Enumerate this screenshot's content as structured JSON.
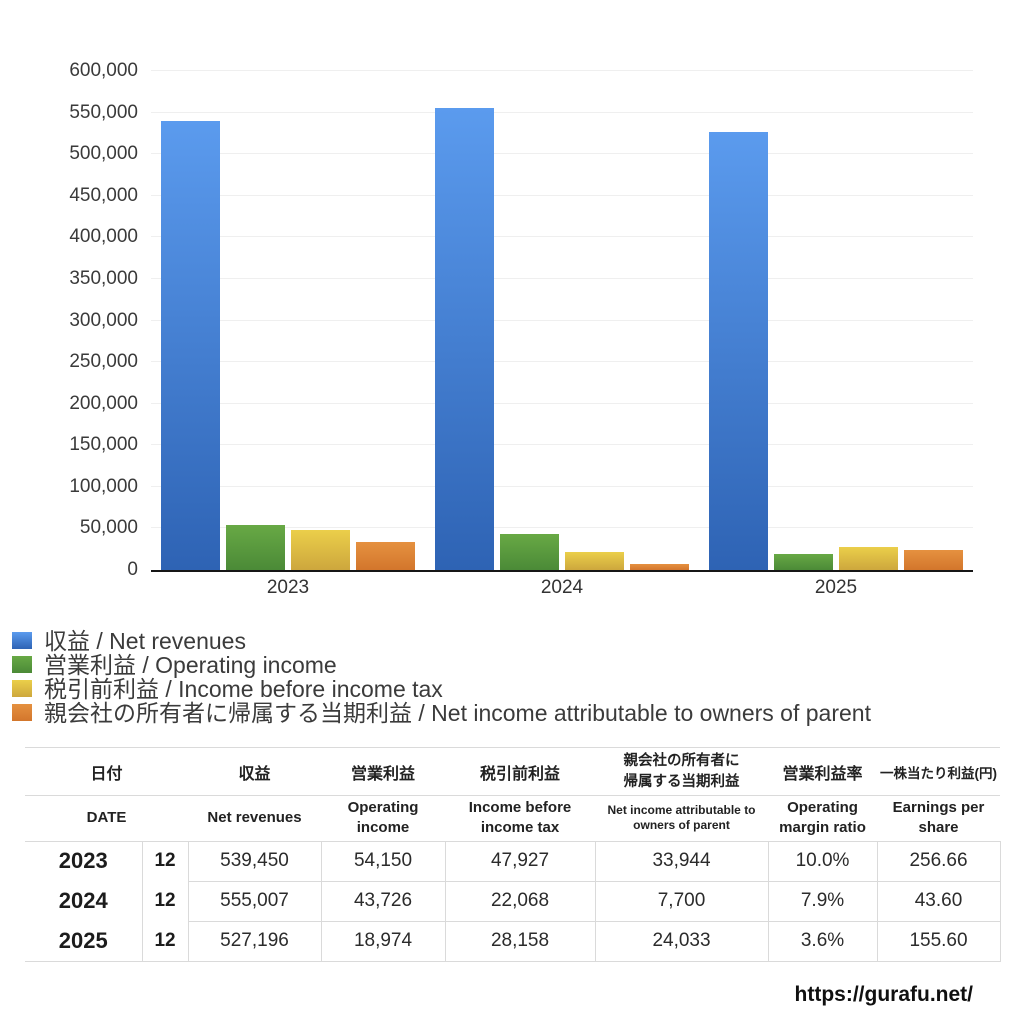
{
  "chart_data": {
    "type": "bar",
    "title": "",
    "xlabel": "",
    "ylabel": "",
    "categories": [
      "2023",
      "2024",
      "2025"
    ],
    "series": [
      {
        "name": "収益 / Net revenues",
        "color_top": "#5b9bee",
        "color_bottom": "#2e63b4",
        "values": [
          539450,
          555007,
          527196
        ]
      },
      {
        "name": "営業利益 / Operating income",
        "color_top": "#68a945",
        "color_bottom": "#4b8a37",
        "values": [
          54150,
          43726,
          18974
        ]
      },
      {
        "name": "税引前利益 / Income before income tax",
        "color_top": "#ebcf4a",
        "color_bottom": "#cda73d",
        "values": [
          47927,
          22068,
          28158
        ]
      },
      {
        "name": "親会社の所有者に帰属する当期利益 / Net income attributable to owners of parent",
        "color_top": "#e59140",
        "color_bottom": "#d3762c",
        "values": [
          33944,
          7700,
          24033
        ]
      }
    ],
    "ylim": [
      0,
      600000
    ],
    "ytick_step": 50000,
    "grid": true,
    "legend_position": "bottom-left"
  },
  "table": {
    "header_jp": [
      "日付",
      "収益",
      "営業利益",
      "税引前利益",
      "親会社の所有者に\n帰属する当期利益",
      "営業利益率",
      "一株当たり利益(円)"
    ],
    "header_en": [
      "DATE",
      "Net revenues",
      "Operating income",
      "Income before income tax",
      "Net income attributable to owners of parent",
      "Operating margin ratio",
      "Earnings per share"
    ],
    "rows": [
      {
        "year": "2023",
        "month": "12",
        "values": [
          "539,450",
          "54,150",
          "47,927",
          "33,944",
          "10.0%",
          "256.66"
        ]
      },
      {
        "year": "2024",
        "month": "12",
        "values": [
          "555,007",
          "43,726",
          "22,068",
          "7,700",
          "7.9%",
          "43.60"
        ]
      },
      {
        "year": "2025",
        "month": "12",
        "values": [
          "527,196",
          "18,974",
          "28,158",
          "24,033",
          "3.6%",
          "155.60"
        ]
      }
    ]
  },
  "footer": {
    "url": "https://gurafu.net/"
  }
}
